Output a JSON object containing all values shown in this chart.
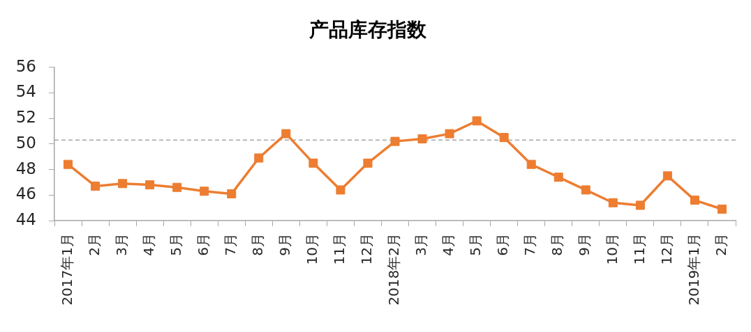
{
  "chart_data": {
    "type": "line",
    "title": "产品库存指数",
    "categories": [
      "2017年1月",
      "2月",
      "3月",
      "4月",
      "5月",
      "6月",
      "7月",
      "8月",
      "9月",
      "10月",
      "11月",
      "12月",
      "2018年2月",
      "3月",
      "4月",
      "5月",
      "6月",
      "7月",
      "8月",
      "9月",
      "10月",
      "11月",
      "12月",
      "2019年1月",
      "2月"
    ],
    "series": [
      {
        "color": "#ed7d31",
        "values": [
          48.4,
          46.7,
          46.9,
          46.8,
          46.6,
          46.3,
          46.1,
          48.9,
          50.8,
          48.5,
          46.4,
          48.5,
          50.2,
          50.4,
          50.8,
          51.8,
          50.5,
          48.4,
          47.4,
          46.4,
          45.4,
          45.2,
          47.5,
          45.6,
          44.9
        ]
      }
    ],
    "ylim": [
      44,
      56
    ],
    "yticks": [
      44,
      46,
      48,
      50,
      52,
      54,
      56
    ],
    "marker": "square",
    "legend": false,
    "grid": false,
    "ref_lines": [
      {
        "axis": "y",
        "value": 50.3,
        "color": "#a6a6a6",
        "line_style": "dashed"
      }
    ]
  }
}
